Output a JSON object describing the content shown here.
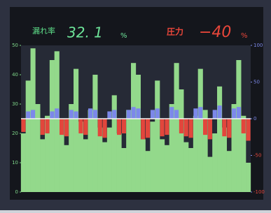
{
  "header": {
    "label": "漏れ率",
    "value": "32. 1",
    "unit": "%",
    "label2": "圧力",
    "value2": "−40",
    "unit2": "%"
  },
  "chart_data": {
    "type": "bar",
    "ylim": [
      0,
      50
    ],
    "yticks": [
      0,
      10,
      20,
      30,
      40,
      50
    ],
    "y2lim": [
      -100,
      100
    ],
    "y2ticks": [
      -100,
      -50,
      0,
      50,
      100
    ],
    "series": [
      {
        "color": "#93d98b",
        "values": [
          20,
          38,
          49,
          30,
          18,
          26,
          45,
          48,
          25,
          16,
          30,
          42,
          24,
          18,
          28,
          40,
          22,
          17,
          22,
          33,
          20,
          15,
          28,
          44,
          40,
          18,
          14,
          24,
          38,
          18,
          16,
          30,
          44,
          35,
          17,
          15,
          26,
          42,
          28,
          12,
          20,
          36,
          22,
          14,
          30,
          45,
          26,
          10
        ]
      },
      {
        "color": "#7c88ea",
        "axis": "y2",
        "values": [
          null,
          10,
          12,
          null,
          null,
          null,
          10,
          14,
          null,
          null,
          12,
          10,
          null,
          null,
          14,
          12,
          null,
          null,
          10,
          12,
          null,
          null,
          12,
          16,
          14,
          null,
          null,
          12,
          14,
          null,
          null,
          16,
          12,
          null,
          null,
          null,
          14,
          16,
          null,
          null,
          12,
          18,
          null,
          null,
          14,
          16,
          null,
          null
        ]
      },
      {
        "color": "#e2463c",
        "axis": "y2",
        "values": [
          -18,
          null,
          null,
          null,
          -22,
          -20,
          null,
          null,
          -22,
          -24,
          null,
          null,
          -20,
          -22,
          null,
          null,
          -24,
          -26,
          null,
          null,
          -22,
          -20,
          null,
          null,
          null,
          -28,
          -26,
          null,
          null,
          -24,
          -22,
          null,
          null,
          -20,
          -24,
          -26,
          null,
          null,
          -22,
          -28,
          null,
          null,
          -24,
          -26,
          null,
          null,
          -20,
          -30
        ]
      }
    ]
  }
}
